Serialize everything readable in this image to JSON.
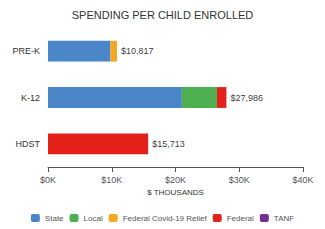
{
  "chart_data": {
    "type": "bar",
    "orientation": "horizontal",
    "stacked": true,
    "title": "SPENDING PER CHILD ENROLLED",
    "xlabel": "$ THOUSANDS",
    "categories": [
      "PRE-K",
      "K-12",
      "HDST"
    ],
    "series": [
      {
        "name": "State",
        "color": "#4a86c8",
        "values": [
          9800,
          21000,
          0
        ]
      },
      {
        "name": "Local",
        "color": "#4caf50",
        "values": [
          0,
          5500,
          0
        ]
      },
      {
        "name": "Federal Covid-19 Relief",
        "color": "#f5a623",
        "values": [
          1017,
          0,
          0
        ]
      },
      {
        "name": "Federal",
        "color": "#e32119",
        "values": [
          0,
          1486,
          15713
        ]
      },
      {
        "name": "TANF",
        "color": "#7b2d8b",
        "values": [
          0,
          0,
          0
        ]
      }
    ],
    "annotations": [
      {
        "text": "$10,817",
        "x": 10817,
        "y": "PRE-K"
      },
      {
        "text": "$27,986",
        "x": 27986,
        "y": "K-12"
      },
      {
        "text": "$15,713",
        "x": 15713,
        "y": "HDST"
      }
    ],
    "xlim": [
      0,
      40000
    ],
    "xticks": [
      {
        "value": 0,
        "label": "$0K"
      },
      {
        "value": 10000,
        "label": "$10K"
      },
      {
        "value": 20000,
        "label": "$20K"
      },
      {
        "value": 30000,
        "label": "$30K"
      },
      {
        "value": 40000,
        "label": "$40K"
      }
    ],
    "grid": false,
    "legend": "bottom"
  }
}
